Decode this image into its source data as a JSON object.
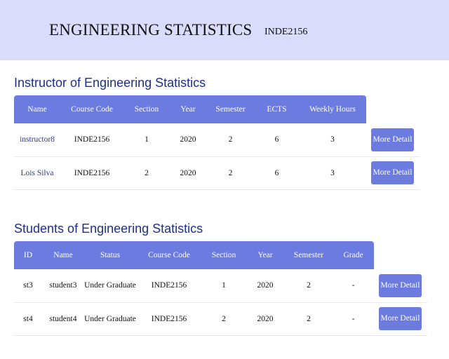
{
  "header": {
    "title": "ENGINEERING STATISTICS",
    "code": "INDE2156"
  },
  "instructors": {
    "heading": "Instructor of Engineering Statistics",
    "columns": [
      "Name",
      "Course Code",
      "Section",
      "Year",
      "Semester",
      "ECTS",
      "Weekly Hours"
    ],
    "rows": [
      {
        "name": "instructor8",
        "course_code": "INDE2156",
        "section": "1",
        "year": "2020",
        "semester": "2",
        "ects": "6",
        "weekly_hours": "3",
        "button": "More Detail"
      },
      {
        "name": "Lois Silva",
        "course_code": "INDE2156",
        "section": "2",
        "year": "2020",
        "semester": "2",
        "ects": "6",
        "weekly_hours": "3",
        "button": "More Detail"
      }
    ]
  },
  "students": {
    "heading": "Students of Engineering Statistics",
    "columns": [
      "ID",
      "Name",
      "Status",
      "Course Code",
      "Section",
      "Year",
      "Semester",
      "Grade"
    ],
    "rows": [
      {
        "id": "st3",
        "name": "student3",
        "status": "Under Graduate",
        "course_code": "INDE2156",
        "section": "1",
        "year": "2020",
        "semester": "2",
        "grade": "-",
        "button": "More Detail"
      },
      {
        "id": "st4",
        "name": "student4",
        "status": "Under Graduate",
        "course_code": "INDE2156",
        "section": "2",
        "year": "2020",
        "semester": "2",
        "grade": "-",
        "button": "More Detail"
      }
    ]
  },
  "colors": {
    "header_bg": "#d9dcfb",
    "accent": "#6b7be0",
    "heading_text": "#1e2f8c"
  }
}
